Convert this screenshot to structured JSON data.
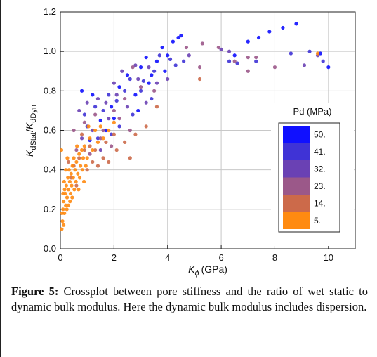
{
  "chart_data": {
    "type": "scatter",
    "xlabel": {
      "main": "K",
      "sub": "ϕ",
      "unit": "(GPa)"
    },
    "ylabel": {
      "k1": "K",
      "s1": "dStat",
      "slash": "/",
      "k2": "K",
      "s2": "dDyn"
    },
    "xlim": [
      0,
      11
    ],
    "ylim": [
      0,
      1.2
    ],
    "x_ticks": [
      0,
      2,
      4,
      6,
      8,
      10
    ],
    "x_tick_labels": [
      "0",
      "2",
      "4",
      "6",
      "8",
      "10"
    ],
    "y_ticks": [
      0,
      0.2,
      0.4,
      0.6,
      0.8,
      1.0,
      1.2
    ],
    "y_tick_labels": [
      "0.0",
      "0.2",
      "0.4",
      "0.6",
      "0.8",
      "1.0",
      "1.2"
    ],
    "grid": true,
    "legend": {
      "title": "Pd (MPa)",
      "placement": "right",
      "entries": [
        {
          "label": "50.",
          "color": "#1010ff"
        },
        {
          "label": "41.",
          "color": "#3f33d6"
        },
        {
          "label": "32.",
          "color": "#6a41b4"
        },
        {
          "label": "23.",
          "color": "#9b5889"
        },
        {
          "label": "14.",
          "color": "#cc6a4a"
        },
        {
          "label": "5.",
          "color": "#ff8a10"
        }
      ]
    },
    "series": [
      {
        "name": "50.",
        "color": "#1010ff",
        "points": [
          [
            0.8,
            0.8
          ],
          [
            1.2,
            0.78
          ],
          [
            1.5,
            0.65
          ],
          [
            1.9,
            0.72
          ],
          [
            2.2,
            0.82
          ],
          [
            2.5,
            0.88
          ],
          [
            2.8,
            0.78
          ],
          [
            3.0,
            0.92
          ],
          [
            3.2,
            0.97
          ],
          [
            3.4,
            0.88
          ],
          [
            3.6,
            0.95
          ],
          [
            3.8,
            1.02
          ],
          [
            4.2,
            1.05
          ],
          [
            4.4,
            1.07
          ],
          [
            4.5,
            1.08
          ],
          [
            2.9,
            0.7
          ],
          [
            3.3,
            0.84
          ],
          [
            4.0,
            0.98
          ],
          [
            6.5,
            0.98
          ],
          [
            7.0,
            1.05
          ],
          [
            7.4,
            1.07
          ],
          [
            7.8,
            1.1
          ],
          [
            8.3,
            1.12
          ],
          [
            8.8,
            1.14
          ],
          [
            9.7,
            0.99
          ],
          [
            10.0,
            0.92
          ],
          [
            1.7,
            0.6
          ],
          [
            2.0,
            0.66
          ],
          [
            3.9,
            0.9
          ],
          [
            1.1,
            0.55
          ]
        ]
      },
      {
        "name": "41.",
        "color": "#3f33d6",
        "points": [
          [
            0.9,
            0.68
          ],
          [
            1.3,
            0.72
          ],
          [
            1.6,
            0.7
          ],
          [
            1.8,
            0.78
          ],
          [
            2.1,
            0.75
          ],
          [
            2.4,
            0.8
          ],
          [
            2.6,
            0.86
          ],
          [
            3.1,
            0.85
          ],
          [
            3.5,
            0.9
          ],
          [
            3.7,
            0.98
          ],
          [
            4.1,
            0.96
          ],
          [
            4.6,
            0.95
          ],
          [
            2.2,
            0.62
          ],
          [
            2.7,
            0.68
          ],
          [
            1.4,
            0.56
          ],
          [
            3.4,
            0.76
          ],
          [
            6.3,
            0.95
          ],
          [
            6.6,
            0.94
          ],
          [
            7.3,
            0.95
          ],
          [
            8.6,
            0.99
          ],
          [
            9.3,
            1.0
          ],
          [
            9.8,
            0.95
          ],
          [
            1.0,
            0.62
          ],
          [
            1.9,
            0.58
          ],
          [
            3.0,
            0.8
          ],
          [
            4.3,
            0.93
          ]
        ]
      },
      {
        "name": "32.",
        "color": "#6a41b4",
        "points": [
          [
            0.7,
            0.7
          ],
          [
            1.0,
            0.74
          ],
          [
            1.4,
            0.76
          ],
          [
            1.7,
            0.74
          ],
          [
            2.0,
            0.84
          ],
          [
            2.3,
            0.9
          ],
          [
            2.8,
            0.93
          ],
          [
            3.3,
            0.92
          ],
          [
            3.6,
            0.84
          ],
          [
            4.0,
            0.86
          ],
          [
            1.2,
            0.6
          ],
          [
            1.8,
            0.66
          ],
          [
            2.5,
            0.72
          ],
          [
            0.8,
            0.56
          ],
          [
            1.5,
            0.5
          ],
          [
            3.2,
            0.74
          ],
          [
            4.8,
            0.98
          ],
          [
            6.0,
            1.01
          ],
          [
            6.3,
            1.0
          ],
          [
            9.1,
            0.93
          ],
          [
            9.6,
            0.98
          ],
          [
            2.1,
            0.78
          ],
          [
            2.9,
            0.86
          ]
        ]
      },
      {
        "name": "23.",
        "color": "#9b5889",
        "points": [
          [
            0.5,
            0.6
          ],
          [
            0.9,
            0.64
          ],
          [
            1.3,
            0.68
          ],
          [
            1.6,
            0.6
          ],
          [
            2.0,
            0.7
          ],
          [
            2.4,
            0.76
          ],
          [
            2.7,
            0.92
          ],
          [
            3.0,
            0.82
          ],
          [
            3.5,
            0.8
          ],
          [
            4.7,
            1.02
          ],
          [
            5.3,
            1.04
          ],
          [
            5.9,
            1.02
          ],
          [
            6.5,
            0.95
          ],
          [
            7.0,
            0.97
          ],
          [
            7.3,
            0.97
          ],
          [
            8.0,
            0.92
          ],
          [
            0.6,
            0.5
          ],
          [
            1.1,
            0.48
          ],
          [
            1.5,
            0.56
          ],
          [
            2.2,
            0.66
          ],
          [
            2.6,
            0.6
          ],
          [
            1.9,
            0.52
          ],
          [
            7.0,
            0.9
          ],
          [
            5.2,
            0.92
          ]
        ]
      },
      {
        "name": "14.",
        "color": "#cc6a4a",
        "points": [
          [
            0.3,
            0.44
          ],
          [
            0.5,
            0.42
          ],
          [
            0.7,
            0.46
          ],
          [
            0.9,
            0.5
          ],
          [
            1.1,
            0.52
          ],
          [
            1.3,
            0.5
          ],
          [
            1.6,
            0.46
          ],
          [
            1.8,
            0.44
          ],
          [
            2.1,
            0.5
          ],
          [
            2.4,
            0.54
          ],
          [
            2.8,
            0.58
          ],
          [
            3.2,
            0.62
          ],
          [
            0.4,
            0.36
          ],
          [
            0.6,
            0.32
          ],
          [
            1.0,
            0.4
          ],
          [
            1.4,
            0.42
          ],
          [
            1.7,
            0.54
          ],
          [
            2.0,
            0.58
          ],
          [
            5.2,
            0.86
          ],
          [
            0.8,
            0.58
          ],
          [
            1.2,
            0.44
          ],
          [
            2.6,
            0.46
          ],
          [
            3.6,
            0.72
          ]
        ]
      },
      {
        "name": "5.",
        "color": "#ff8a10",
        "points": [
          [
            0.05,
            0.1
          ],
          [
            0.08,
            0.14
          ],
          [
            0.1,
            0.2
          ],
          [
            0.12,
            0.24
          ],
          [
            0.15,
            0.18
          ],
          [
            0.18,
            0.28
          ],
          [
            0.2,
            0.22
          ],
          [
            0.22,
            0.32
          ],
          [
            0.25,
            0.26
          ],
          [
            0.28,
            0.36
          ],
          [
            0.3,
            0.3
          ],
          [
            0.32,
            0.4
          ],
          [
            0.35,
            0.34
          ],
          [
            0.38,
            0.28
          ],
          [
            0.4,
            0.38
          ],
          [
            0.42,
            0.32
          ],
          [
            0.45,
            0.42
          ],
          [
            0.48,
            0.36
          ],
          [
            0.5,
            0.46
          ],
          [
            0.55,
            0.4
          ],
          [
            0.6,
            0.44
          ],
          [
            0.65,
            0.38
          ],
          [
            0.7,
            0.48
          ],
          [
            0.75,
            0.42
          ],
          [
            0.8,
            0.5
          ],
          [
            0.85,
            0.46
          ],
          [
            0.9,
            0.52
          ],
          [
            1.0,
            0.46
          ],
          [
            1.1,
            0.56
          ],
          [
            1.2,
            0.5
          ],
          [
            1.3,
            0.6
          ],
          [
            1.4,
            0.54
          ],
          [
            1.5,
            0.62
          ],
          [
            1.6,
            0.56
          ],
          [
            1.8,
            0.6
          ],
          [
            2.0,
            0.64
          ],
          [
            0.06,
            0.18
          ],
          [
            0.1,
            0.28
          ],
          [
            0.14,
            0.34
          ],
          [
            0.2,
            0.4
          ],
          [
            0.26,
            0.46
          ],
          [
            0.3,
            0.22
          ],
          [
            0.36,
            0.24
          ],
          [
            0.44,
            0.26
          ],
          [
            0.52,
            0.3
          ],
          [
            0.58,
            0.34
          ],
          [
            0.62,
            0.52
          ],
          [
            0.72,
            0.36
          ],
          [
            0.82,
            0.4
          ],
          [
            0.95,
            0.42
          ],
          [
            0.04,
            0.5
          ],
          [
            0.12,
            0.12
          ],
          [
            0.16,
            0.3
          ],
          [
            0.24,
            0.2
          ],
          [
            9.6,
            0.99
          ],
          [
            1.05,
            0.62
          ],
          [
            0.68,
            0.3
          ],
          [
            0.88,
            0.34
          ]
        ]
      }
    ]
  },
  "caption": {
    "label": "Figure 5:",
    "text": " Crossplot between pore stiffness and the ratio of wet static to dynamic bulk modulus. Here the dynamic bulk modulus includes dispersion."
  }
}
